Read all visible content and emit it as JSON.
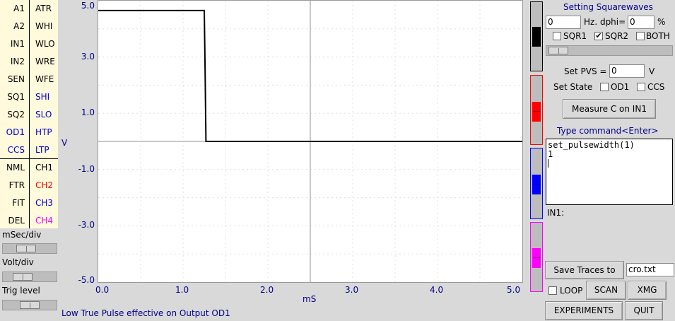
{
  "channels": {
    "left": [
      "A1",
      "A2",
      "IN1",
      "IN2",
      "SEN",
      "SQ1",
      "SQ2",
      "OD1",
      "CCS",
      "NML",
      "FTR",
      "FIT",
      "DEL"
    ],
    "right": [
      "ATR",
      "WHI",
      "WLO",
      "WRE",
      "WFE",
      "SHI",
      "SLO",
      "HTP",
      "LTP",
      "CH1",
      "CH2",
      "CH3",
      "CH4"
    ]
  },
  "sliders": {
    "msec_label": "mSec/div",
    "volt_label": "Volt/div",
    "trig_label": "Trig level",
    "msec_value": 0.4,
    "volt_value": 0.3,
    "trig_value": 0.5
  },
  "plot": {
    "y_ticks": [
      "5.0",
      "3.0",
      "1.0",
      "-1.0",
      "-3.0",
      "-5.0"
    ],
    "x_ticks": [
      "0.0",
      "1.0",
      "2.0",
      "3.0",
      "4.0",
      "5.0"
    ],
    "y_unit": "V",
    "x_unit": "mS"
  },
  "chart_data": {
    "type": "line",
    "xlabel": "mS",
    "ylabel": "V",
    "xlim": [
      0,
      5
    ],
    "ylim": [
      -5,
      5
    ],
    "grid": true,
    "series": [
      {
        "color": "#000000",
        "x": [
          0,
          1.25,
          1.26,
          1.27,
          5.0
        ],
        "y": [
          4.65,
          4.65,
          2.5,
          0.0,
          0.0
        ]
      }
    ]
  },
  "status": "Low True Pulse effective on Output OD1",
  "channel_slider_colors": [
    "#000000",
    "#ff0000",
    "#0000ff",
    "#ff00ff"
  ],
  "right_panel": {
    "title": "Setting Squarewaves",
    "freq_value": "0",
    "freq_label": "Hz. dphi=",
    "dphi_value": "0",
    "pct_label": "%",
    "sqr1_label": "SQR1",
    "sqr2_label": "SQR2",
    "both_label": "BOTH",
    "sqr1_checked": false,
    "sqr2_checked": true,
    "both_checked": false,
    "set_pvs_label": "Set PVS =",
    "pvs_value": "0",
    "pvs_unit": "V",
    "set_state_label": "Set State",
    "od1_label": "OD1",
    "ccs_label": "CCS",
    "measure_button": "Measure C on IN1",
    "type_command_label": "Type command<Enter>",
    "command_text": "set_pulsewidth(1)\n1\n",
    "in1_label": "IN1:",
    "save_traces_button": "Save Traces to",
    "save_filename": "cro.txt",
    "loop_label": "LOOP",
    "scan_button": "SCAN",
    "xmg_button": "XMG",
    "experiments_button": "EXPERIMENTS",
    "quit_button": "QUIT"
  }
}
